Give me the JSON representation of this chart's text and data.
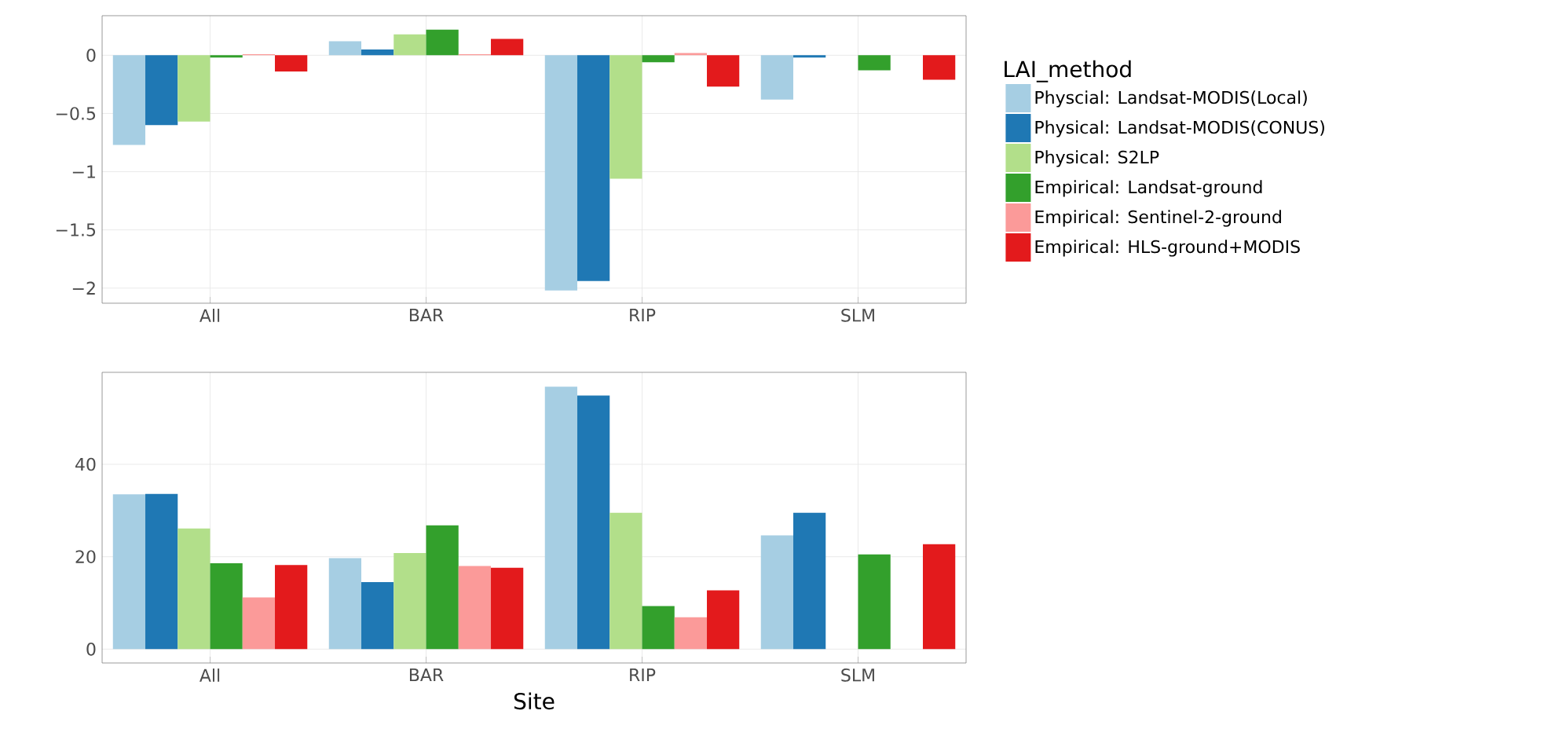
{
  "chart_data": [
    {
      "type": "bar",
      "categories": [
        "All",
        "BAR",
        "RIP",
        "SLM"
      ],
      "legend_title": "LAI_method",
      "legend": "right",
      "grid": true,
      "ylim": [
        -2.13,
        0.34
      ],
      "yticks": [
        {
          "value": -2,
          "label": "−2"
        },
        {
          "value": -1.5,
          "label": "−1.5"
        },
        {
          "value": -1,
          "label": "−1"
        },
        {
          "value": -0.5,
          "label": "−0.5"
        },
        {
          "value": 0,
          "label": "0"
        }
      ],
      "series": [
        {
          "name": "Physcial: Landsat-MODIS(Local)",
          "color": "#a6cee3",
          "values": [
            -0.77,
            0.12,
            -2.02,
            -0.38
          ]
        },
        {
          "name": "Physical: Landsat-MODIS(CONUS)",
          "color": "#1f78b4",
          "values": [
            -0.6,
            0.05,
            -1.94,
            -0.02
          ]
        },
        {
          "name": "Physical: S2LP",
          "color": "#b2df8a",
          "values": [
            -0.57,
            0.18,
            -1.06,
            null
          ]
        },
        {
          "name": "Empirical: Landsat-ground",
          "color": "#33a02c",
          "values": [
            -0.02,
            0.22,
            -0.06,
            -0.13
          ]
        },
        {
          "name": "Empirical: Sentinel-2-ground",
          "color": "#fb9a99",
          "values": [
            0.01,
            0.01,
            0.02,
            null
          ]
        },
        {
          "name": "Empirical: HLS-ground+MODIS",
          "color": "#e31a1c",
          "values": [
            -0.14,
            0.14,
            -0.27,
            -0.21
          ]
        }
      ]
    },
    {
      "type": "bar",
      "categories": [
        "All",
        "BAR",
        "RIP",
        "SLM"
      ],
      "xlabel": "Site",
      "grid": true,
      "ylim": [
        -3,
        59.9
      ],
      "yticks": [
        0,
        20,
        40
      ],
      "series": [
        {
          "color": "#a6cee3",
          "values": [
            33.5,
            19.7,
            56.8,
            24.6
          ]
        },
        {
          "color": "#1f78b4",
          "values": [
            33.6,
            14.5,
            54.9,
            29.5
          ]
        },
        {
          "color": "#b2df8a",
          "values": [
            26.1,
            20.8,
            29.5,
            null
          ]
        },
        {
          "color": "#33a02c",
          "values": [
            18.6,
            26.8,
            9.3,
            20.5
          ]
        },
        {
          "color": "#fb9a99",
          "values": [
            11.2,
            18.0,
            6.9,
            null
          ]
        },
        {
          "color": "#e31a1c",
          "values": [
            18.2,
            17.6,
            12.7,
            22.7
          ]
        }
      ]
    }
  ]
}
